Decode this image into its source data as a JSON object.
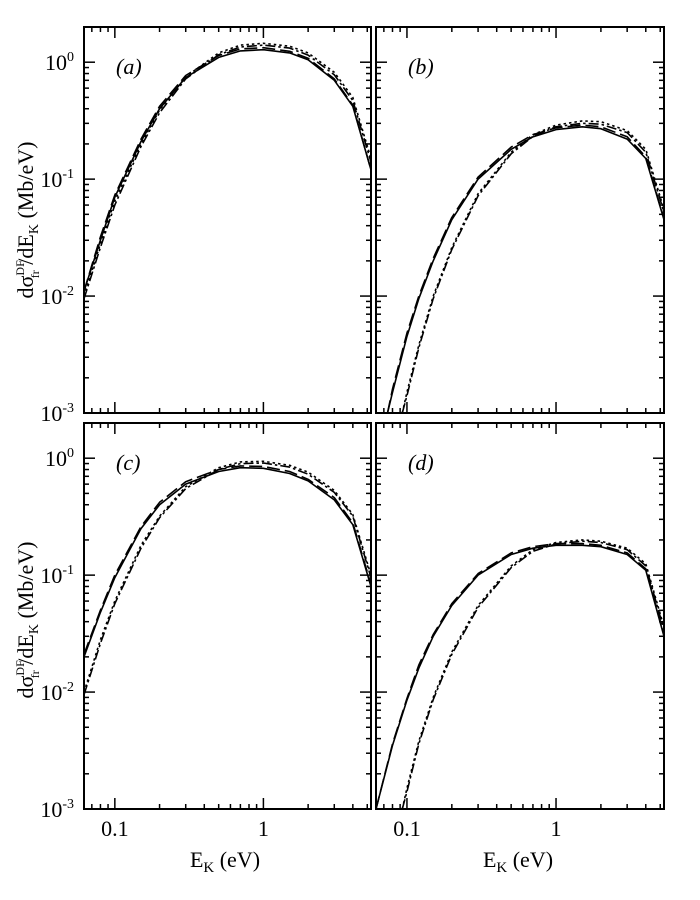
{
  "figure": {
    "ylabel": {
      "main": "dσ",
      "sup": "DF",
      "sub": "fr",
      "rest": " /dE",
      "sub2": "K",
      "unit": "  (Mb/eV)"
    },
    "xlabel": {
      "main": "E",
      "sub": "K",
      "unit": "  (eV)"
    }
  },
  "chart_data": [
    {
      "type": "line",
      "panel_label": "(a)",
      "xscale": "log",
      "yscale": "log",
      "xlim": [
        0.062,
        5.3
      ],
      "ylim": [
        0.001,
        2.0
      ],
      "xticks": [
        {
          "value": 0.1,
          "label": "0.1"
        },
        {
          "value": 1,
          "label": "1"
        }
      ],
      "yticks": [
        {
          "value": 0.001,
          "base": "10",
          "exp": "-3"
        },
        {
          "value": 0.01,
          "base": "10",
          "exp": "-2"
        },
        {
          "value": 0.1,
          "base": "10",
          "exp": "-1"
        },
        {
          "value": 1,
          "base": "10",
          "exp": "0"
        }
      ],
      "series": [
        {
          "style": "solid",
          "x": [
            0.062,
            0.08,
            0.1,
            0.15,
            0.2,
            0.3,
            0.5,
            0.7,
            1.0,
            1.5,
            2.0,
            3.0,
            4.0,
            5.3
          ],
          "y": [
            0.011,
            0.03,
            0.07,
            0.21,
            0.4,
            0.74,
            1.1,
            1.25,
            1.28,
            1.2,
            1.05,
            0.7,
            0.42,
            0.12
          ]
        },
        {
          "style": "long-dash",
          "x": [
            0.062,
            0.08,
            0.1,
            0.15,
            0.2,
            0.3,
            0.5,
            0.7,
            1.0,
            1.5,
            2.0,
            3.0,
            4.0,
            5.3
          ],
          "y": [
            0.011,
            0.032,
            0.073,
            0.22,
            0.42,
            0.77,
            1.14,
            1.3,
            1.33,
            1.24,
            1.08,
            0.72,
            0.43,
            0.12
          ]
        },
        {
          "style": "dotted",
          "x": [
            0.062,
            0.08,
            0.1,
            0.15,
            0.2,
            0.3,
            0.5,
            0.7,
            1.0,
            1.5,
            2.0,
            3.0,
            4.0,
            5.3
          ],
          "y": [
            0.01,
            0.028,
            0.065,
            0.2,
            0.39,
            0.75,
            1.2,
            1.4,
            1.45,
            1.37,
            1.2,
            0.82,
            0.5,
            0.15
          ]
        },
        {
          "style": "dash-dot",
          "x": [
            0.062,
            0.08,
            0.1,
            0.15,
            0.2,
            0.3,
            0.5,
            0.7,
            1.0,
            1.5,
            2.0,
            3.0,
            4.0,
            5.3
          ],
          "y": [
            0.0095,
            0.026,
            0.06,
            0.19,
            0.37,
            0.72,
            1.16,
            1.35,
            1.4,
            1.32,
            1.15,
            0.78,
            0.47,
            0.14
          ]
        }
      ]
    },
    {
      "type": "line",
      "panel_label": "(b)",
      "xscale": "log",
      "yscale": "log",
      "xlim": [
        0.062,
        5.3
      ],
      "ylim": [
        0.001,
        2.0
      ],
      "xticks": [
        {
          "value": 0.1,
          "label": "0.1"
        },
        {
          "value": 1,
          "label": "1"
        }
      ],
      "yticks": [
        {
          "value": 0.001
        },
        {
          "value": 0.01
        },
        {
          "value": 0.1
        },
        {
          "value": 1
        }
      ],
      "series": [
        {
          "style": "solid",
          "x": [
            0.074,
            0.08,
            0.1,
            0.12,
            0.15,
            0.2,
            0.3,
            0.5,
            0.7,
            1.0,
            1.5,
            2.0,
            3.0,
            4.0,
            5.3
          ],
          "y": [
            0.001,
            0.0015,
            0.0045,
            0.0095,
            0.02,
            0.045,
            0.1,
            0.18,
            0.23,
            0.265,
            0.28,
            0.27,
            0.22,
            0.15,
            0.045
          ]
        },
        {
          "style": "long-dash",
          "x": [
            0.074,
            0.08,
            0.1,
            0.12,
            0.15,
            0.2,
            0.3,
            0.5,
            0.7,
            1.0,
            1.5,
            2.0,
            3.0,
            4.0,
            5.3
          ],
          "y": [
            0.001,
            0.0016,
            0.0048,
            0.01,
            0.021,
            0.047,
            0.104,
            0.188,
            0.24,
            0.275,
            0.29,
            0.28,
            0.23,
            0.155,
            0.046
          ]
        },
        {
          "style": "dotted",
          "x": [
            0.093,
            0.1,
            0.12,
            0.15,
            0.2,
            0.3,
            0.5,
            0.7,
            1.0,
            1.5,
            2.0,
            3.0,
            4.0,
            5.3
          ],
          "y": [
            0.001,
            0.0015,
            0.0038,
            0.01,
            0.026,
            0.075,
            0.17,
            0.24,
            0.29,
            0.315,
            0.31,
            0.26,
            0.18,
            0.055
          ]
        },
        {
          "style": "dash-dot",
          "x": [
            0.093,
            0.1,
            0.12,
            0.15,
            0.2,
            0.3,
            0.5,
            0.7,
            1.0,
            1.5,
            2.0,
            3.0,
            4.0,
            5.3
          ],
          "y": [
            0.001,
            0.0014,
            0.0036,
            0.0095,
            0.025,
            0.072,
            0.165,
            0.232,
            0.28,
            0.3,
            0.295,
            0.25,
            0.17,
            0.052
          ]
        }
      ]
    },
    {
      "type": "line",
      "panel_label": "(c)",
      "xscale": "log",
      "yscale": "log",
      "xlim": [
        0.062,
        5.3
      ],
      "ylim": [
        0.001,
        2.0
      ],
      "xticks": [
        {
          "value": 0.1,
          "label": "0.1"
        },
        {
          "value": 1,
          "label": "1"
        }
      ],
      "yticks": [
        {
          "value": 0.001,
          "base": "10",
          "exp": "-3"
        },
        {
          "value": 0.01,
          "base": "10",
          "exp": "-2"
        },
        {
          "value": 0.1,
          "base": "10",
          "exp": "-1"
        },
        {
          "value": 1,
          "base": "10",
          "exp": "0"
        }
      ],
      "series": [
        {
          "style": "solid",
          "x": [
            0.062,
            0.08,
            0.1,
            0.15,
            0.2,
            0.3,
            0.5,
            0.7,
            1.0,
            1.5,
            2.0,
            3.0,
            4.0,
            5.3
          ],
          "y": [
            0.02,
            0.048,
            0.095,
            0.25,
            0.4,
            0.6,
            0.77,
            0.83,
            0.82,
            0.74,
            0.64,
            0.44,
            0.27,
            0.08
          ]
        },
        {
          "style": "long-dash",
          "x": [
            0.062,
            0.08,
            0.1,
            0.15,
            0.2,
            0.3,
            0.5,
            0.7,
            1.0,
            1.5,
            2.0,
            3.0,
            4.0,
            5.3
          ],
          "y": [
            0.021,
            0.05,
            0.1,
            0.26,
            0.42,
            0.63,
            0.8,
            0.86,
            0.85,
            0.77,
            0.66,
            0.46,
            0.28,
            0.083
          ]
        },
        {
          "style": "dotted",
          "x": [
            0.062,
            0.08,
            0.1,
            0.15,
            0.2,
            0.3,
            0.5,
            0.7,
            1.0,
            1.5,
            2.0,
            3.0,
            4.0,
            5.3
          ],
          "y": [
            0.01,
            0.028,
            0.06,
            0.18,
            0.32,
            0.57,
            0.83,
            0.93,
            0.94,
            0.87,
            0.76,
            0.53,
            0.33,
            0.1
          ]
        },
        {
          "style": "dash-dot",
          "x": [
            0.062,
            0.08,
            0.1,
            0.15,
            0.2,
            0.3,
            0.5,
            0.7,
            1.0,
            1.5,
            2.0,
            3.0,
            4.0,
            5.3
          ],
          "y": [
            0.0095,
            0.026,
            0.057,
            0.17,
            0.31,
            0.55,
            0.8,
            0.9,
            0.91,
            0.84,
            0.73,
            0.51,
            0.32,
            0.095
          ]
        }
      ]
    },
    {
      "type": "line",
      "panel_label": "(d)",
      "xscale": "log",
      "yscale": "log",
      "xlim": [
        0.062,
        5.3
      ],
      "ylim": [
        0.001,
        2.0
      ],
      "xticks": [
        {
          "value": 0.1,
          "label": "0.1"
        },
        {
          "value": 1,
          "label": "1"
        }
      ],
      "yticks": [
        {
          "value": 0.001
        },
        {
          "value": 0.01
        },
        {
          "value": 0.1
        },
        {
          "value": 1
        }
      ],
      "series": [
        {
          "style": "solid",
          "x": [
            0.062,
            0.08,
            0.1,
            0.12,
            0.15,
            0.2,
            0.3,
            0.5,
            0.7,
            1.0,
            1.5,
            2.0,
            3.0,
            4.0,
            5.3
          ],
          "y": [
            0.001,
            0.0035,
            0.0085,
            0.016,
            0.03,
            0.055,
            0.1,
            0.15,
            0.17,
            0.18,
            0.18,
            0.175,
            0.15,
            0.11,
            0.03
          ]
        },
        {
          "style": "long-dash",
          "x": [
            0.062,
            0.08,
            0.1,
            0.12,
            0.15,
            0.2,
            0.3,
            0.5,
            0.7,
            1.0,
            1.5,
            2.0,
            3.0,
            4.0,
            5.3
          ],
          "y": [
            0.001,
            0.0036,
            0.0088,
            0.017,
            0.031,
            0.057,
            0.103,
            0.155,
            0.175,
            0.186,
            0.186,
            0.18,
            0.155,
            0.113,
            0.031
          ]
        },
        {
          "style": "dotted",
          "x": [
            0.093,
            0.1,
            0.12,
            0.15,
            0.2,
            0.3,
            0.5,
            0.7,
            1.0,
            1.5,
            2.0,
            3.0,
            4.0,
            5.3
          ],
          "y": [
            0.001,
            0.0015,
            0.0038,
            0.009,
            0.022,
            0.055,
            0.12,
            0.165,
            0.19,
            0.2,
            0.195,
            0.17,
            0.125,
            0.036
          ]
        },
        {
          "style": "dash-dot",
          "x": [
            0.093,
            0.1,
            0.12,
            0.15,
            0.2,
            0.3,
            0.5,
            0.7,
            1.0,
            1.5,
            2.0,
            3.0,
            4.0,
            5.3
          ],
          "y": [
            0.001,
            0.0014,
            0.0036,
            0.0086,
            0.021,
            0.053,
            0.116,
            0.16,
            0.185,
            0.195,
            0.19,
            0.165,
            0.12,
            0.034
          ]
        }
      ]
    }
  ]
}
